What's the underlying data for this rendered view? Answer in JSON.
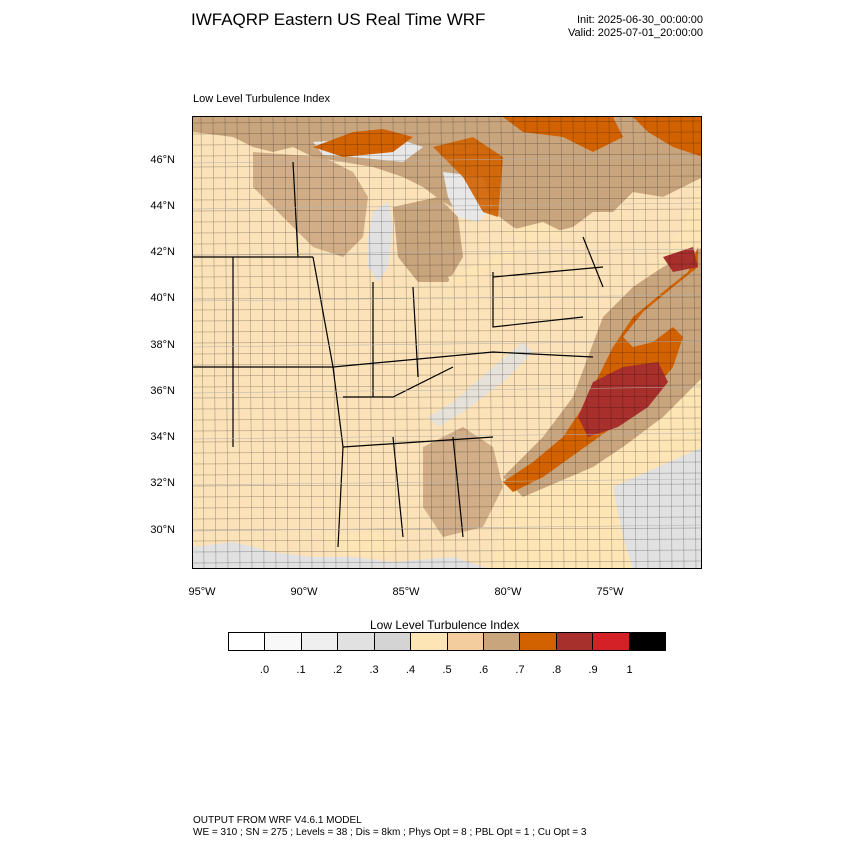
{
  "header": {
    "title": "IWFAQRP Eastern US Real Time WRF",
    "init": "Init: 2025-06-30_00:00:00",
    "valid": "Valid: 2025-07-01_20:00:00"
  },
  "plot": {
    "subtitle": "Low Level Turbulence Index",
    "lat_labels": [
      "46°N",
      "44°N",
      "42°N",
      "40°N",
      "38°N",
      "36°N",
      "34°N",
      "32°N",
      "30°N"
    ],
    "lon_labels": [
      "95°W",
      "90°W",
      "85°W",
      "80°W",
      "75°W"
    ]
  },
  "colorbar": {
    "title": "Low Level Turbulence Index",
    "labels": [
      ".0",
      ".1",
      ".2",
      ".3",
      ".4",
      ".5",
      ".6",
      ".7",
      ".8",
      ".9",
      "1"
    ],
    "colors": [
      "#ffffff",
      "#f8f8f8",
      "#efefef",
      "#e1e1e1",
      "#d4d4d4",
      "#fde5b6",
      "#f4cd9f",
      "#c9a57e",
      "#d26200",
      "#a8302c",
      "#d32127",
      "#000000"
    ]
  },
  "map_colors": {
    "land_base": "#fbe2b8",
    "moderate": "#c9a57e",
    "orange": "#d26200",
    "dark_red": "#a8302c",
    "light_grey": "#e1e1e1",
    "sea_pale": "#fde5b6"
  },
  "footer": {
    "line1": "OUTPUT FROM WRF V4.6.1 MODEL",
    "line2": "WE = 310 ; SN = 275 ; Levels = 38 ; Dis = 8km ; Phys Opt = 8 ; PBL Opt = 1 ; Cu Opt = 3"
  }
}
